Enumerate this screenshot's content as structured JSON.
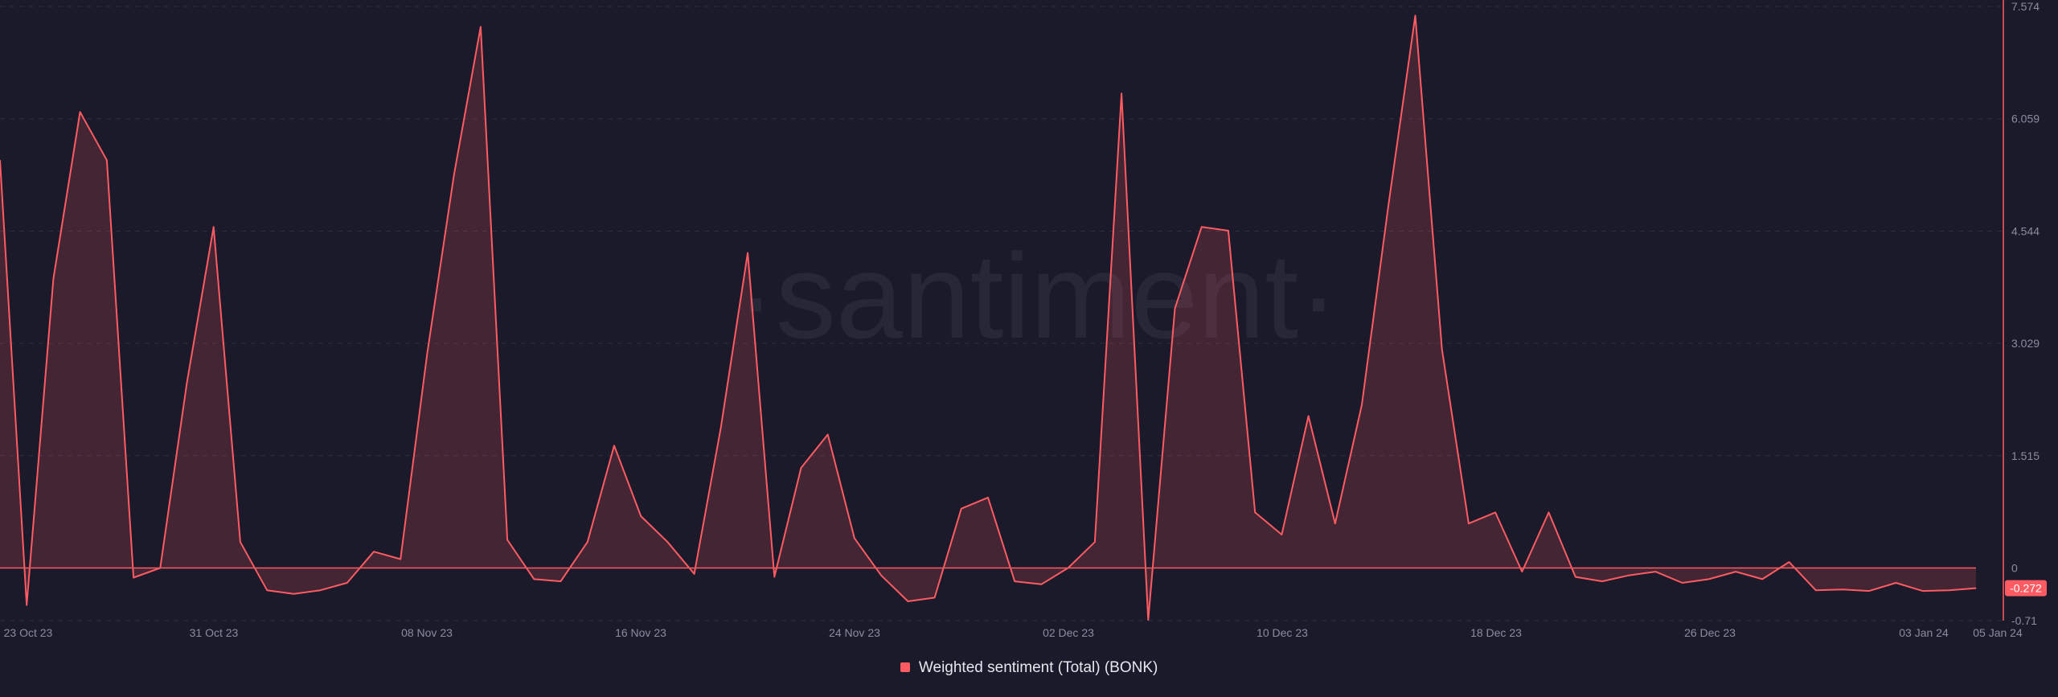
{
  "watermark": "·santiment·",
  "colors": {
    "background": "#1a1a2a",
    "series": "#ff5b62",
    "grid": "#2c2e40",
    "axis_text": "#8a8d9e"
  },
  "chart_data": {
    "type": "area",
    "title": "",
    "xlabel": "",
    "ylabel": "",
    "grid": true,
    "legend_position": "bottom-center",
    "x_tick_labels": [
      "23 Oct 23",
      "31 Oct 23",
      "08 Nov 23",
      "16 Nov 23",
      "24 Nov 23",
      "02 Dec 23",
      "10 Dec 23",
      "18 Dec 23",
      "26 Dec 23",
      "03 Jan 24",
      "05 Jan 24"
    ],
    "y_tick_labels": [
      "7.574",
      "6.059",
      "4.544",
      "3.029",
      "1.515",
      "0",
      "-0.71"
    ],
    "ylim": [
      -0.71,
      7.574
    ],
    "last_value_label": "-0.272",
    "series": [
      {
        "name": "Weighted sentiment (Total) (BONK)",
        "color": "#ff5b62",
        "values": [
          5.5,
          -0.5,
          3.9,
          6.15,
          5.5,
          -0.13,
          0.0,
          2.5,
          4.6,
          0.35,
          -0.3,
          -0.35,
          -0.3,
          -0.2,
          0.22,
          0.12,
          2.9,
          5.3,
          7.3,
          0.38,
          -0.15,
          -0.18,
          0.35,
          1.65,
          0.7,
          0.35,
          -0.08,
          1.9,
          4.25,
          -0.12,
          1.35,
          1.8,
          0.4,
          -0.1,
          -0.45,
          -0.4,
          0.8,
          0.95,
          -0.18,
          -0.22,
          0.0,
          0.35,
          6.4,
          -0.7,
          3.5,
          4.6,
          4.55,
          0.75,
          0.45,
          2.05,
          0.6,
          2.2,
          4.9,
          7.45,
          2.95,
          0.6,
          0.75,
          -0.05,
          0.75,
          -0.12,
          -0.18,
          -0.1,
          -0.05,
          -0.2,
          -0.15,
          -0.05,
          -0.15,
          0.08,
          -0.3,
          -0.29,
          -0.31,
          -0.2,
          -0.31,
          -0.3,
          -0.272
        ]
      }
    ]
  },
  "legend": {
    "label": "Weighted sentiment (Total) (BONK)"
  }
}
